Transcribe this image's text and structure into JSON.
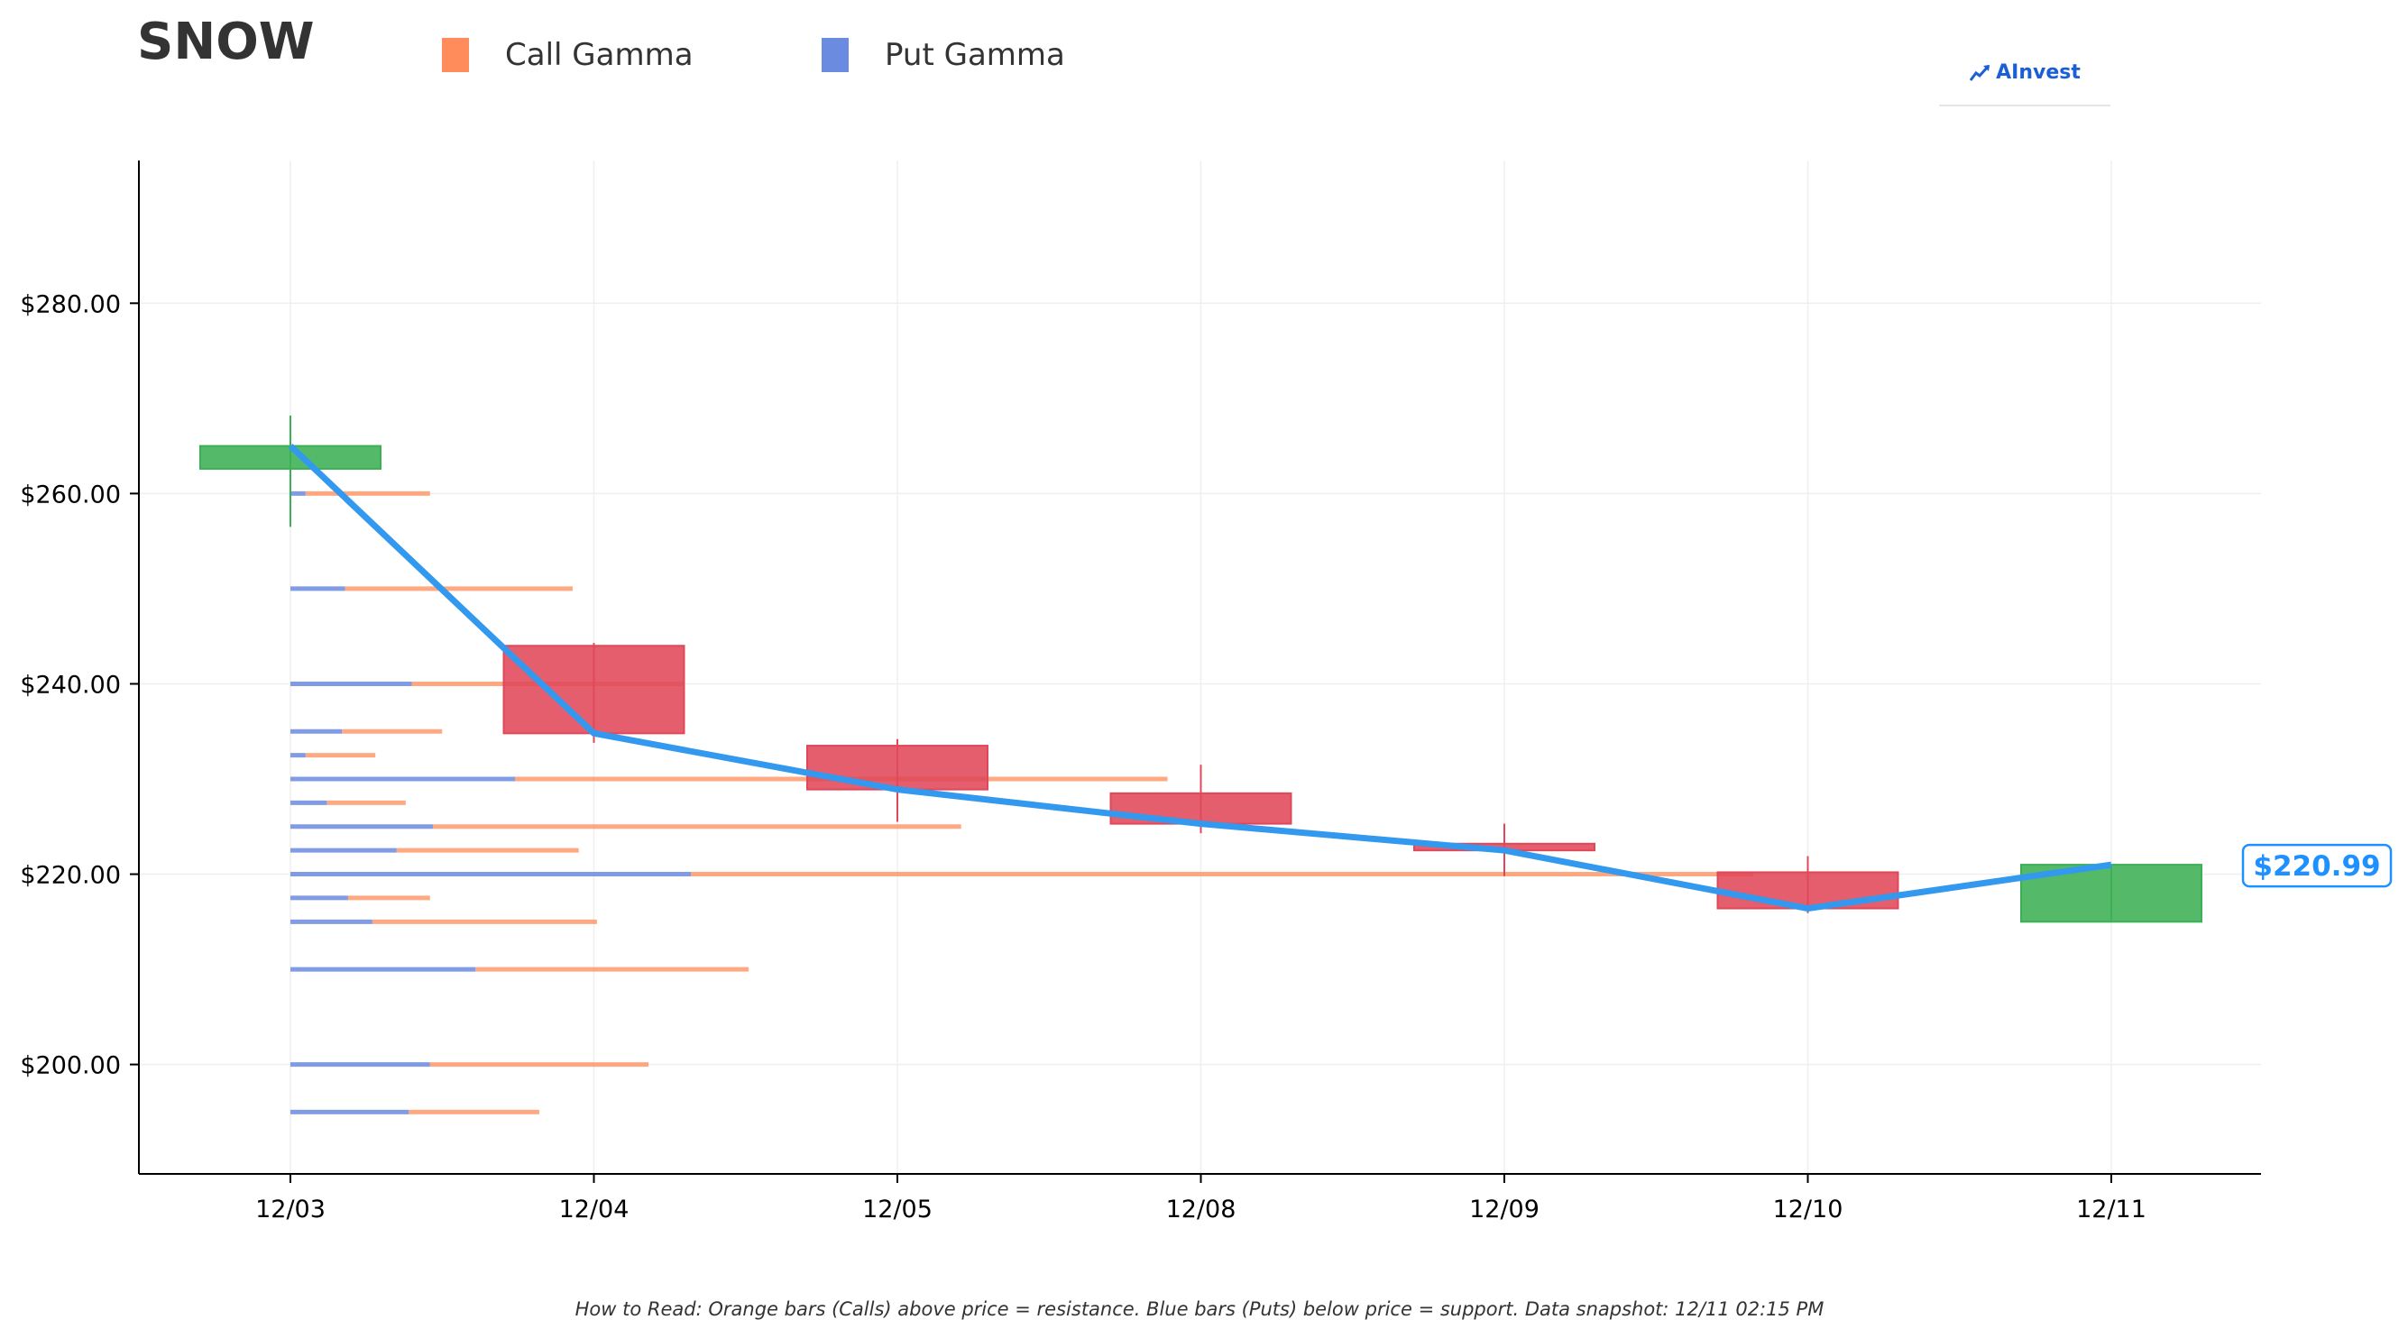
{
  "header": {
    "ticker": "SNOW",
    "legend": [
      {
        "label": "Call Gamma",
        "color": "#ff8c5a"
      },
      {
        "label": "Put Gamma",
        "color": "#6b8be0"
      }
    ],
    "brand": "AInvest"
  },
  "footer": {
    "note": "How to Read: Orange bars (Calls) above price = resistance. Blue bars (Puts) below price = support. Data snapshot: 12/11 02:15 PM"
  },
  "chart_data": {
    "type": "candlestick",
    "title": "SNOW",
    "categories": [
      "12/03",
      "12/04",
      "12/05",
      "12/08",
      "12/09",
      "12/10",
      "12/11"
    ],
    "y_ticks": [
      "$200.00",
      "$220.00",
      "$240.00",
      "$260.00",
      "$280.00"
    ],
    "y_tick_values": [
      200,
      220,
      240,
      260,
      280
    ],
    "ylim": [
      188.5,
      295
    ],
    "grid": true,
    "candles": [
      {
        "date": "12/03",
        "open": 262.6,
        "close": 265.0,
        "high": 268.2,
        "low": 256.5
      },
      {
        "date": "12/04",
        "open": 244.0,
        "close": 234.8,
        "high": 244.3,
        "low": 233.8
      },
      {
        "date": "12/05",
        "open": 233.5,
        "close": 228.9,
        "high": 234.2,
        "low": 225.5
      },
      {
        "date": "12/08",
        "open": 228.5,
        "close": 225.3,
        "high": 231.5,
        "low": 224.3
      },
      {
        "date": "12/09",
        "open": 223.2,
        "close": 222.5,
        "high": 225.3,
        "low": 219.8
      },
      {
        "date": "12/10",
        "open": 220.2,
        "close": 216.4,
        "high": 221.9,
        "low": 215.9
      },
      {
        "date": "12/11",
        "open": 215.0,
        "close": 220.99,
        "high": 220.99,
        "low": 215.0
      }
    ],
    "close_line": {
      "color": "#3399ee",
      "values": [
        265.0,
        234.8,
        228.9,
        225.3,
        222.5,
        216.4,
        220.99
      ]
    },
    "price_label": "$220.99",
    "gamma_units": "bar length in candle-spacing units",
    "gamma_levels": [
      {
        "strike": 260,
        "put": 0.05,
        "call": 0.41
      },
      {
        "strike": 250,
        "put": 0.18,
        "call": 0.75
      },
      {
        "strike": 240,
        "put": 0.4,
        "call": 0.9
      },
      {
        "strike": 235,
        "put": 0.17,
        "call": 0.33
      },
      {
        "strike": 232.5,
        "put": 0.05,
        "call": 0.23
      },
      {
        "strike": 230,
        "put": 0.74,
        "call": 2.15
      },
      {
        "strike": 227.5,
        "put": 0.12,
        "call": 0.26
      },
      {
        "strike": 225,
        "put": 0.47,
        "call": 1.74
      },
      {
        "strike": 222.5,
        "put": 0.35,
        "call": 0.6
      },
      {
        "strike": 220,
        "put": 1.32,
        "call": 3.5
      },
      {
        "strike": 217.5,
        "put": 0.19,
        "call": 0.27
      },
      {
        "strike": 215,
        "put": 0.27,
        "call": 0.74
      },
      {
        "strike": 210,
        "put": 0.61,
        "call": 0.9
      },
      {
        "strike": 200,
        "put": 0.46,
        "call": 0.72
      },
      {
        "strike": 195,
        "put": 0.39,
        "call": 0.43
      }
    ],
    "colors": {
      "up": "#3cb054",
      "down": "#e0485a",
      "call": "#ff8c5a",
      "put": "#6b8be0",
      "axis": "#000000",
      "grid": "#efefef",
      "label": "#1e90ff"
    }
  }
}
